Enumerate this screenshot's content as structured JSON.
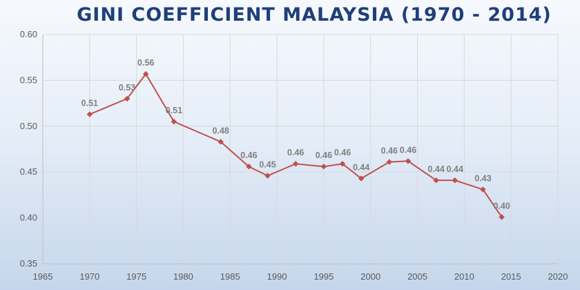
{
  "chart_data": {
    "type": "scatter",
    "title": "GINI COEFFICIENT MALAYSIA (1970 - 2014)",
    "xlabel": "",
    "ylabel": "",
    "xlim": [
      1965,
      2020
    ],
    "ylim": [
      0.35,
      0.6
    ],
    "xticks": [
      1965,
      1970,
      1975,
      1980,
      1985,
      1990,
      1995,
      2000,
      2005,
      2010,
      2015,
      2020
    ],
    "yticks": [
      "0.35",
      "0.40",
      "0.45",
      "0.50",
      "0.55",
      "0.60"
    ],
    "grid": true,
    "color": "#c0504d",
    "marker": "diamond",
    "series": [
      {
        "x": [
          1970,
          1974,
          1976,
          1979,
          1984,
          1987,
          1989,
          1992,
          1995,
          1997,
          1999,
          2002,
          2004,
          2007,
          2009,
          2012,
          2014
        ],
        "y": [
          0.513,
          0.53,
          0.557,
          0.505,
          0.483,
          0.456,
          0.446,
          0.459,
          0.456,
          0.459,
          0.443,
          0.461,
          0.462,
          0.441,
          0.441,
          0.431,
          0.401
        ],
        "labels": [
          "0.51",
          "0.53",
          "0.56",
          "0.51",
          "0.48",
          "0.46",
          "0.45",
          "0.46",
          "0.46",
          "0.46",
          "0.44",
          "0.46",
          "0.46",
          "0.44",
          "0.44",
          "0.43",
          "0.40"
        ]
      }
    ]
  }
}
